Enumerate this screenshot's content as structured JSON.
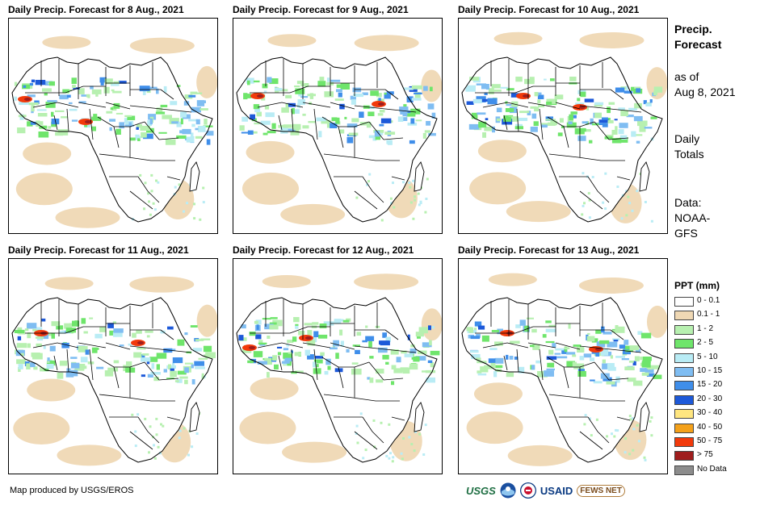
{
  "panels": [
    {
      "title": "Daily Precip. Forecast for 8 Aug., 2021",
      "variant": 0
    },
    {
      "title": "Daily Precip. Forecast for 9 Aug., 2021",
      "variant": 1
    },
    {
      "title": "Daily Precip. Forecast for 10 Aug., 2021",
      "variant": 2
    },
    {
      "title": "Daily Precip. Forecast for 11 Aug., 2021",
      "variant": 3
    },
    {
      "title": "Daily Precip. Forecast for 12 Aug., 2021",
      "variant": 4
    },
    {
      "title": "Daily Precip. Forecast for 13 Aug., 2021",
      "variant": 5
    }
  ],
  "side": {
    "title_line1": "Precip.",
    "title_line2": "Forecast",
    "asof_line1": "as of",
    "asof_line2": "Aug 8, 2021",
    "daily_line1": "Daily",
    "daily_line2": "Totals",
    "data_line1": "Data:",
    "data_line2": "NOAA-",
    "data_line3": "GFS"
  },
  "legend": {
    "title": "PPT (mm)",
    "items": [
      {
        "label": "0 - 0.1",
        "color": "#ffffff"
      },
      {
        "label": "0.1 - 1",
        "color": "#efd8b4"
      },
      {
        "label": "1 - 2",
        "color": "#b7f0b0"
      },
      {
        "label": "2 - 5",
        "color": "#6fe56b"
      },
      {
        "label": "5 - 10",
        "color": "#b9ecf5"
      },
      {
        "label": "10 - 15",
        "color": "#7fbdf2"
      },
      {
        "label": "15 - 20",
        "color": "#3f8eea"
      },
      {
        "label": "20 - 30",
        "color": "#1d59d9"
      },
      {
        "label": "30 - 40",
        "color": "#ffe680"
      },
      {
        "label": "40 - 50",
        "color": "#f4a11a"
      },
      {
        "label": "50 - 75",
        "color": "#f23a0b"
      },
      {
        "label": "> 75",
        "color": "#9f1d1d"
      },
      {
        "label": "No Data",
        "color": "#8c8c8c"
      }
    ]
  },
  "footer": {
    "credit": "Map produced by USGS/EROS"
  },
  "logos": {
    "usgs": "USGS",
    "usaid": "USAID",
    "fews": "FEWS NET"
  }
}
